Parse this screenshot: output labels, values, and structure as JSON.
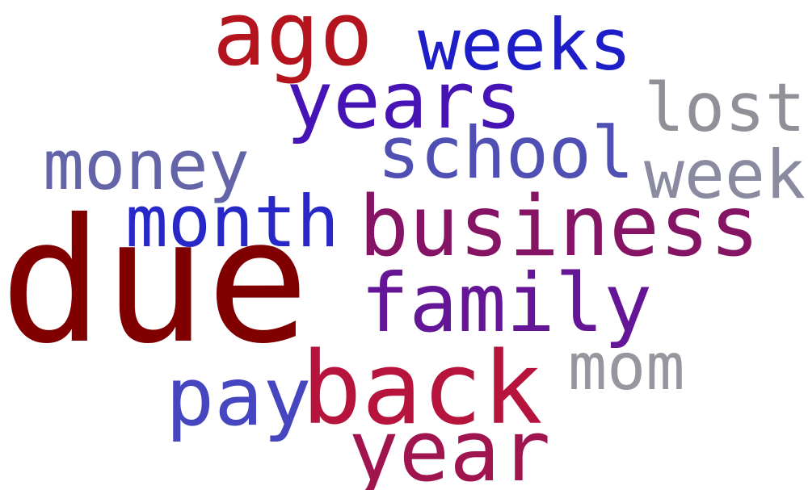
{
  "words": [
    {
      "text": "due",
      "color": "#800000"
    },
    {
      "text": "business",
      "color": "#861464"
    },
    {
      "text": "back",
      "color": "#B6143C"
    },
    {
      "text": "family",
      "color": "#641696"
    },
    {
      "text": "year",
      "color": "#A01450"
    },
    {
      "text": "ago",
      "color": "#B4141E"
    },
    {
      "text": "years",
      "color": "#4614B4"
    },
    {
      "text": "month",
      "color": "#2828C8"
    },
    {
      "text": "weeks",
      "color": "#1E1EC8"
    },
    {
      "text": "school",
      "color": "#5050B4"
    },
    {
      "text": "money",
      "color": "#6464A8"
    },
    {
      "text": "pay",
      "color": "#4646C0"
    },
    {
      "text": "week",
      "color": "#8A8AA0"
    },
    {
      "text": "lost",
      "color": "#909098"
    },
    {
      "text": "mom",
      "color": "#96969E"
    }
  ]
}
